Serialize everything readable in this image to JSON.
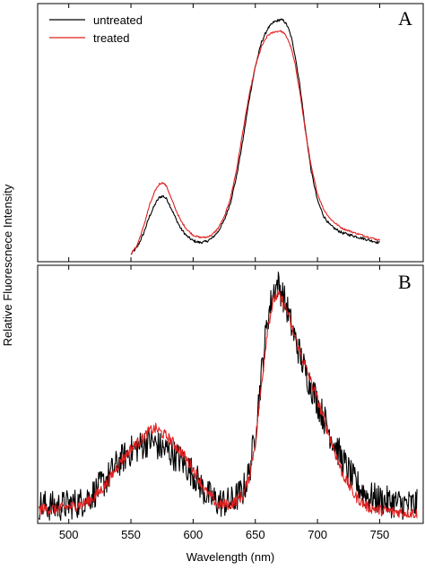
{
  "figure": {
    "ylabel": "Relative Fluorescnece Intensity",
    "xlabel": "Wavelength (nm)",
    "xticks": [
      500,
      550,
      600,
      650,
      700,
      750
    ],
    "xlim": [
      475,
      785
    ]
  },
  "colors": {
    "untreated": "#000000",
    "treated": "#e02020"
  },
  "chart_data": [
    {
      "type": "line",
      "panel": "A",
      "legend_placement": "top-left",
      "xlim": [
        475,
        785
      ],
      "ylim": [
        0,
        1.1
      ],
      "series": [
        {
          "name": "untreated",
          "color": "#000000",
          "noise": 0.006,
          "x": [
            550,
            555,
            560,
            565,
            570,
            573,
            576,
            579,
            582,
            586,
            590,
            595,
            600,
            605,
            610,
            615,
            620,
            625,
            630,
            635,
            640,
            645,
            650,
            655,
            660,
            665,
            670,
            673,
            676,
            679,
            682,
            686,
            690,
            695,
            700,
            705,
            710,
            715,
            720,
            730,
            740,
            750
          ],
          "y": [
            0.01,
            0.04,
            0.1,
            0.18,
            0.24,
            0.265,
            0.27,
            0.255,
            0.22,
            0.17,
            0.125,
            0.09,
            0.07,
            0.062,
            0.065,
            0.08,
            0.11,
            0.16,
            0.24,
            0.36,
            0.52,
            0.7,
            0.85,
            0.96,
            1.02,
            1.05,
            1.06,
            1.055,
            1.03,
            0.98,
            0.9,
            0.76,
            0.58,
            0.38,
            0.25,
            0.18,
            0.14,
            0.12,
            0.105,
            0.09,
            0.075,
            0.06
          ]
        },
        {
          "name": "treated",
          "color": "#e02020",
          "noise": 0.004,
          "x": [
            550,
            555,
            560,
            565,
            570,
            573,
            576,
            579,
            582,
            586,
            590,
            595,
            600,
            605,
            610,
            615,
            620,
            625,
            630,
            635,
            640,
            645,
            650,
            655,
            660,
            665,
            670,
            673,
            676,
            679,
            682,
            686,
            690,
            695,
            700,
            705,
            710,
            715,
            720,
            730,
            740,
            750
          ],
          "y": [
            0.01,
            0.05,
            0.13,
            0.23,
            0.3,
            0.325,
            0.33,
            0.31,
            0.265,
            0.21,
            0.16,
            0.12,
            0.095,
            0.085,
            0.085,
            0.095,
            0.125,
            0.175,
            0.26,
            0.39,
            0.56,
            0.72,
            0.85,
            0.94,
            0.99,
            1.005,
            1.01,
            1.0,
            0.975,
            0.93,
            0.86,
            0.73,
            0.57,
            0.4,
            0.28,
            0.21,
            0.17,
            0.145,
            0.125,
            0.105,
            0.088,
            0.072
          ]
        }
      ]
    },
    {
      "type": "line",
      "panel": "B",
      "xlim": [
        475,
        785
      ],
      "ylim": [
        0,
        1.1
      ],
      "series": [
        {
          "name": "untreated",
          "color": "#000000",
          "noise": 0.07,
          "x": [
            476,
            490,
            500,
            510,
            520,
            530,
            540,
            550,
            560,
            565,
            570,
            575,
            580,
            590,
            600,
            610,
            620,
            630,
            640,
            645,
            650,
            655,
            660,
            665,
            668,
            672,
            676,
            680,
            685,
            690,
            700,
            710,
            720,
            730,
            740,
            750,
            760,
            770,
            780
          ],
          "y": [
            0.06,
            0.05,
            0.06,
            0.07,
            0.11,
            0.17,
            0.25,
            0.3,
            0.33,
            0.35,
            0.33,
            0.31,
            0.3,
            0.26,
            0.2,
            0.11,
            0.07,
            0.07,
            0.12,
            0.2,
            0.38,
            0.65,
            0.9,
            1.02,
            1.05,
            1.0,
            0.93,
            0.84,
            0.75,
            0.66,
            0.52,
            0.38,
            0.26,
            0.16,
            0.1,
            0.08,
            0.07,
            0.06,
            0.06
          ]
        },
        {
          "name": "treated",
          "color": "#e02020",
          "noise": 0.025,
          "x": [
            476,
            490,
            500,
            510,
            520,
            530,
            540,
            550,
            560,
            565,
            570,
            575,
            580,
            590,
            600,
            610,
            620,
            630,
            640,
            645,
            650,
            655,
            660,
            665,
            668,
            672,
            676,
            680,
            685,
            690,
            700,
            710,
            720,
            730,
            740,
            750,
            760,
            770,
            780
          ],
          "y": [
            0.04,
            0.04,
            0.05,
            0.06,
            0.09,
            0.15,
            0.24,
            0.31,
            0.36,
            0.39,
            0.4,
            0.38,
            0.36,
            0.3,
            0.22,
            0.12,
            0.06,
            0.06,
            0.1,
            0.18,
            0.34,
            0.6,
            0.86,
            0.98,
            1.0,
            0.97,
            0.92,
            0.84,
            0.76,
            0.68,
            0.53,
            0.36,
            0.2,
            0.1,
            0.05,
            0.035,
            0.03,
            0.025,
            0.02
          ]
        }
      ]
    }
  ]
}
